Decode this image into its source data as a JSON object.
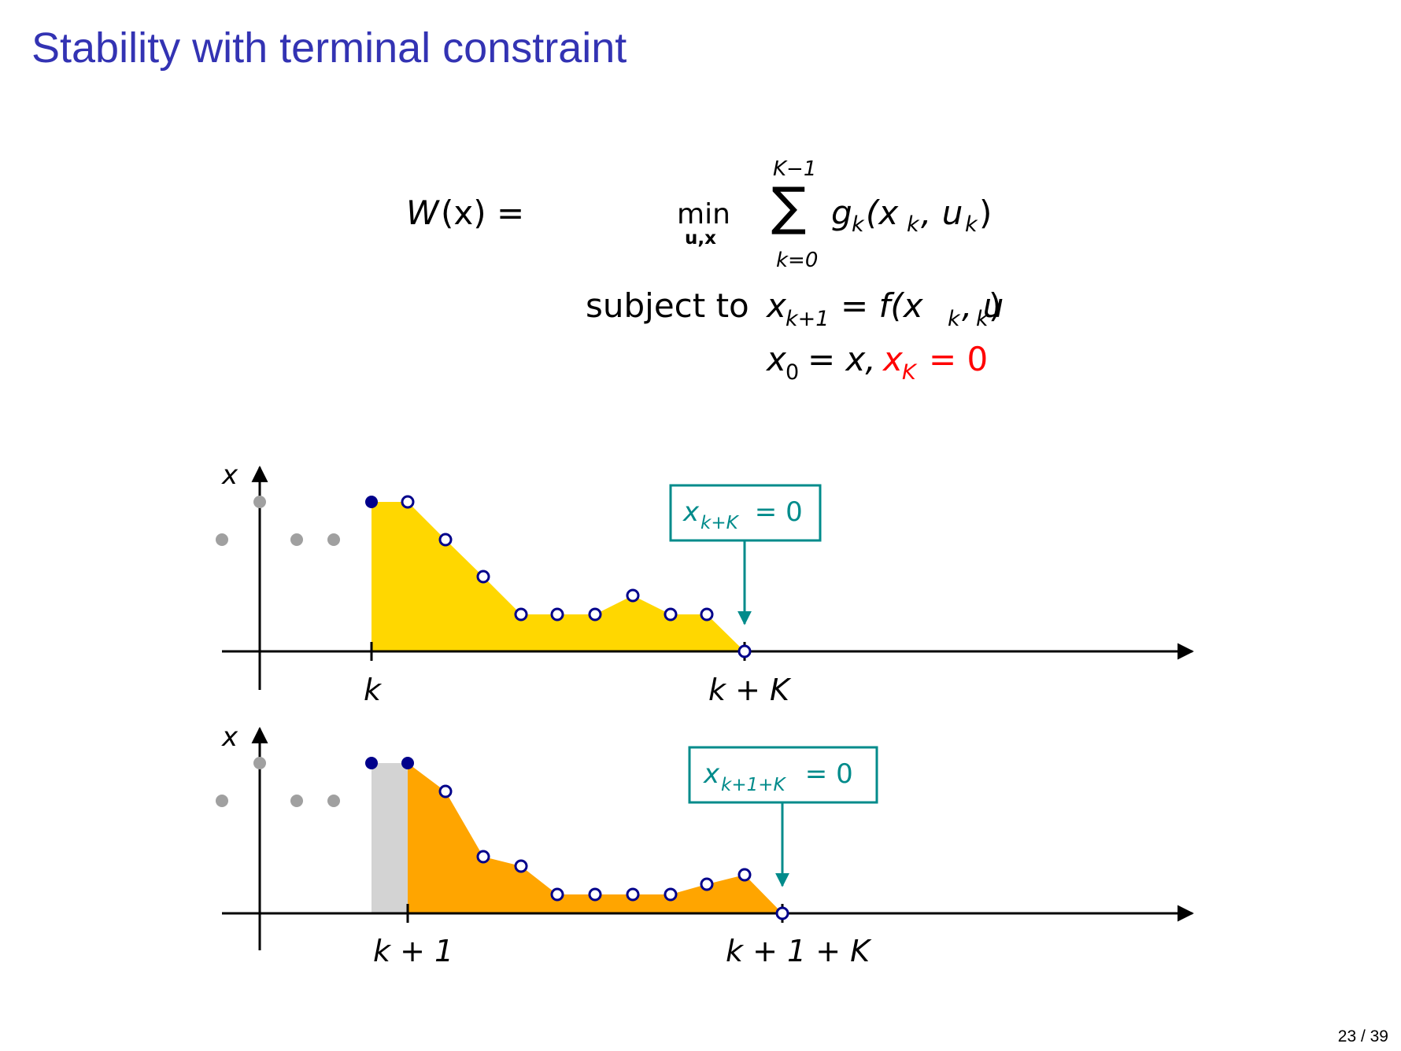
{
  "slide": {
    "title": "Stability with terminal constraint",
    "page": "23 / 39"
  },
  "equation": {
    "lhs_W": "W",
    "lhs_arg": "(x) =",
    "min": "min",
    "min_sub": "u,x",
    "sum_upper": "K−1",
    "sum_symbol": "∑",
    "sum_lower": "k=0",
    "objective_g": "g",
    "objective_g_sub": "k",
    "objective_args": "(x",
    "objective_xsub": "k",
    "objective_mid": ", u",
    "objective_usub": "k",
    "objective_close": ")",
    "subject_to": "subject to",
    "dyn_x": "x",
    "dyn_xsub": "k+1",
    "dyn_rhs": "= f(x",
    "dyn_rhs_xsub": "k",
    "dyn_rhs_mid": ", u",
    "dyn_rhs_usub": "k",
    "dyn_rhs_close": ")",
    "init_x": "x",
    "init_sub": "0",
    "init_rhs": "= x,",
    "term_x": "x",
    "term_sub": "K",
    "term_rhs": "= 0",
    "terminal_color": "#ff0000"
  },
  "plots": [
    {
      "axis_label": "x",
      "tick_start": "k",
      "tick_end": "k + K",
      "callout": "x",
      "callout_sub": "k+K",
      "callout_rhs": " = 0",
      "fill_color": "#ffd700",
      "past_gap_color": null
    },
    {
      "axis_label": "x",
      "tick_start": "k + 1",
      "tick_end": "k + 1 + K",
      "callout": "x",
      "callout_sub": "k+1+K",
      "callout_rhs": " = 0",
      "fill_color": "#ffa500",
      "past_gap_color": "#d3d3d3"
    }
  ],
  "colors": {
    "title": "#3333b3",
    "past_points": "#a0a0a0",
    "point_stroke": "#00008b",
    "callout": "#008b8b"
  }
}
